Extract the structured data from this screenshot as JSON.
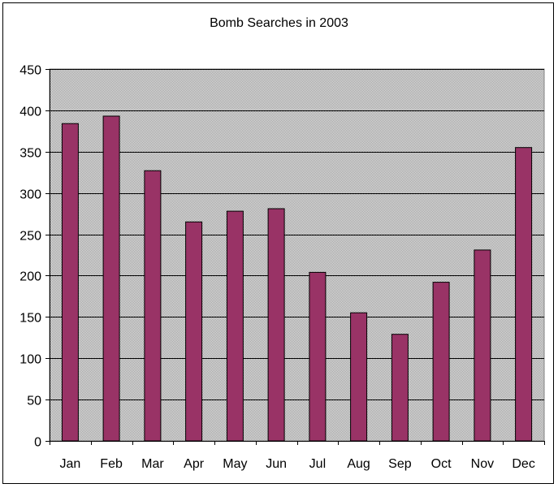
{
  "chart_data": {
    "type": "bar",
    "title": "Bomb Searches in 2003",
    "xlabel": "",
    "ylabel": "",
    "categories": [
      "Jan",
      "Feb",
      "Mar",
      "Apr",
      "May",
      "Jun",
      "Jul",
      "Aug",
      "Sep",
      "Oct",
      "Nov",
      "Dec"
    ],
    "values": [
      384,
      393,
      327,
      265,
      278,
      281,
      204,
      155,
      129,
      192,
      231,
      355
    ],
    "ylim": [
      0,
      450
    ],
    "yticks": [
      "0",
      "50",
      "100",
      "150",
      "200",
      "250",
      "300",
      "350",
      "400",
      "450"
    ],
    "grid": true,
    "legend": "none",
    "colors": {
      "bar_fill": "#993366",
      "bar_stroke": "#000000",
      "plot_background": "#c0c0c0",
      "gridline": "#000000"
    }
  }
}
